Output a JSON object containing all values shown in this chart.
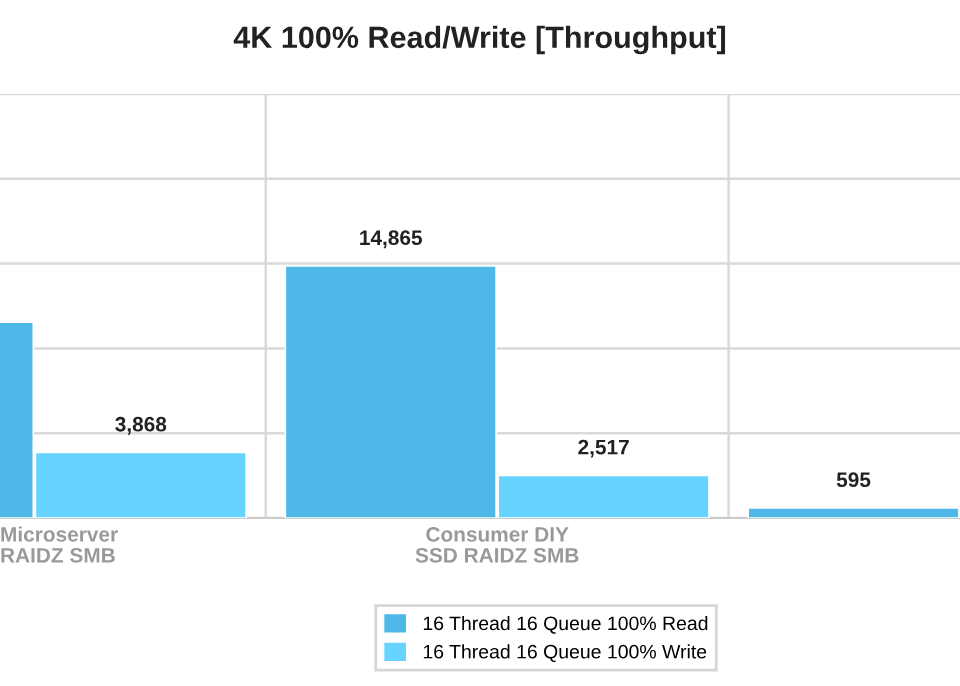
{
  "chart_data": {
    "type": "bar",
    "title": "4K 100% Read/Write [Throughput]",
    "categories": [
      "Microserver\nRAIDZ SMB",
      "Consumer DIY\nSSD RAIDZ SMB",
      null
    ],
    "series": [
      {
        "name": "16 Thread 16 Queue 100% Read",
        "color": "#4db8e8",
        "values": [
          11550,
          14865,
          595
        ],
        "value_labels": [
          null,
          "14,865",
          "595"
        ]
      },
      {
        "name": "16 Thread 16 Queue 100% Write",
        "color": "#66d4ff",
        "values": [
          3868,
          2517,
          null
        ],
        "value_labels": [
          "3,868",
          "2,517",
          null
        ]
      }
    ],
    "ylim": [
      0,
      25000
    ],
    "yticks": [
      {
        "value": 0,
        "label": null
      },
      {
        "value": 5000,
        "label": null
      },
      {
        "value": 10000,
        "label": null
      },
      {
        "value": 15000,
        "label": null
      },
      {
        "value": 20000,
        "label": null
      },
      {
        "value": 25000,
        "label": null
      }
    ],
    "grid": true,
    "legend": "bottom",
    "tick_labels": "x"
  }
}
